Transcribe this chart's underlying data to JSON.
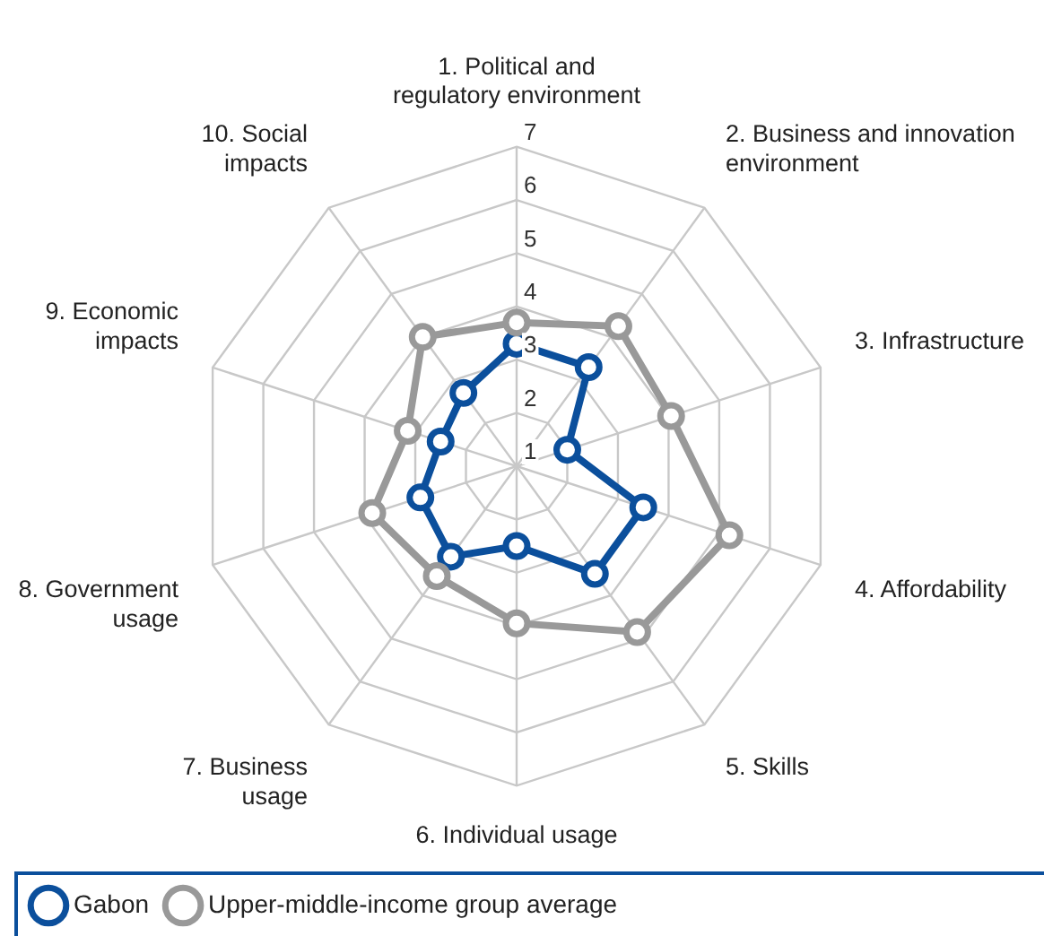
{
  "chart_data": {
    "type": "radar",
    "categories": [
      "1. Political and\nregulatory environment",
      "2. Business and innovation\nenvironment",
      "3. Infrastructure",
      "4. Affordability",
      "5. Skills",
      "6. Individual usage",
      "7. Business\nusage",
      "8. Government\nusage",
      "9. Economic\nimpacts",
      "10. Social\nimpacts"
    ],
    "series": [
      {
        "name": "Gabon",
        "color": "#0b4f9c",
        "values": [
          3.3,
          3.3,
          2.0,
          3.5,
          3.5,
          2.5,
          3.1,
          2.9,
          2.5,
          2.7
        ]
      },
      {
        "name": "Upper-middle-income group average",
        "color": "#999999",
        "values": [
          3.7,
          4.25,
          4.05,
          5.2,
          4.85,
          3.95,
          3.55,
          3.85,
          3.15,
          4.0
        ]
      }
    ],
    "ylim": [
      1,
      7
    ],
    "yticks": [
      1,
      2,
      3,
      4,
      5,
      6,
      7
    ],
    "grid": true,
    "legend": "bottom",
    "marker": "circle",
    "line_style": "solid"
  }
}
